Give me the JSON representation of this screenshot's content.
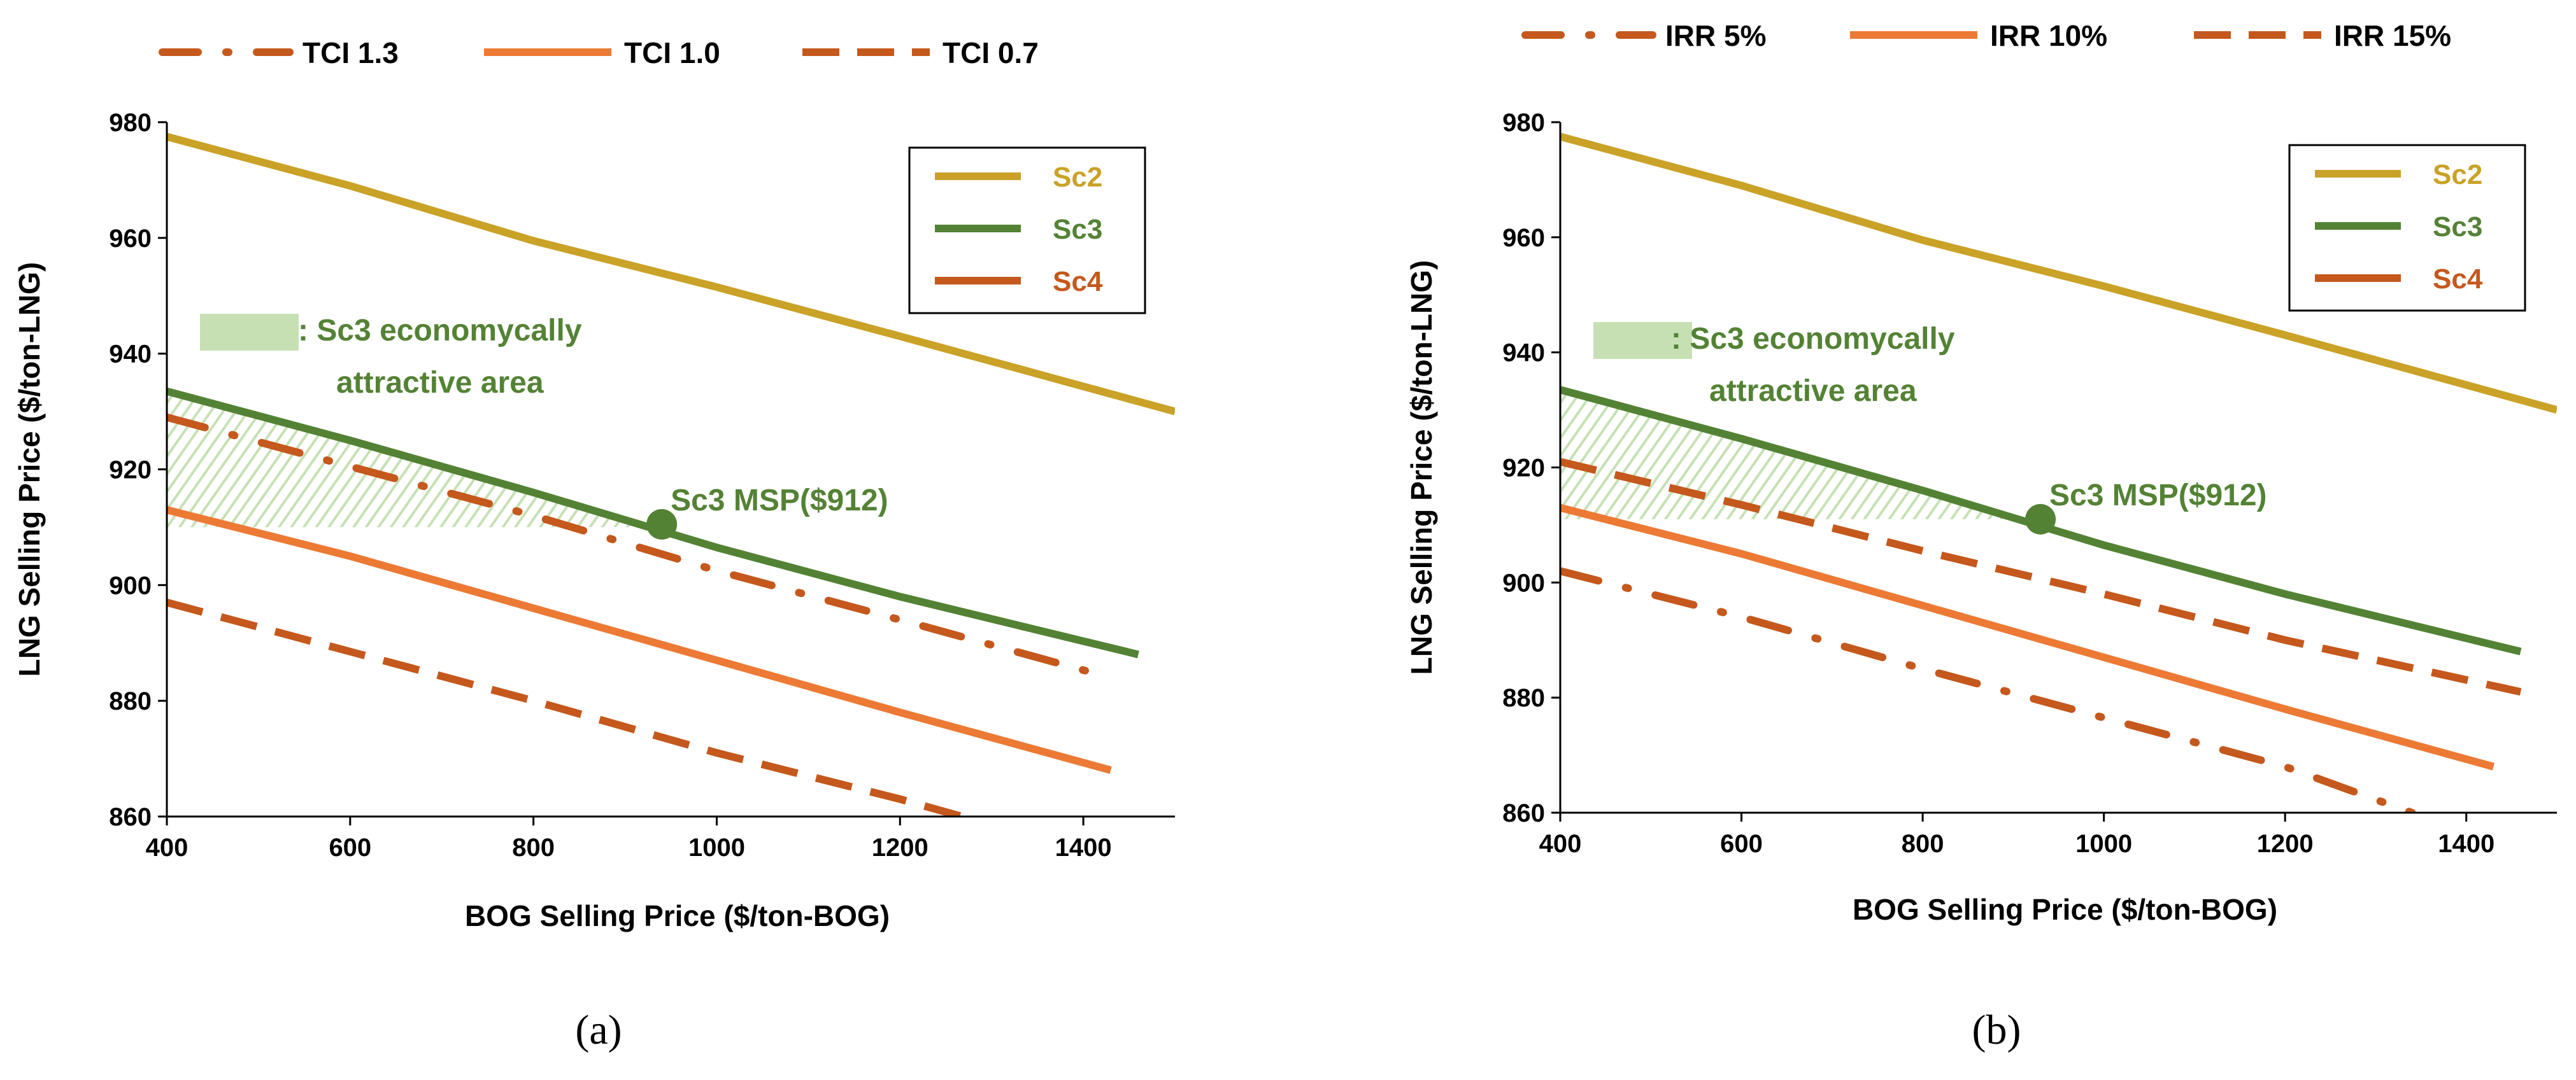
{
  "colors": {
    "sc2": "#C9A227",
    "sc3": "#548235",
    "sc4": "#EC7A35",
    "dark_orange": "#C5581C",
    "area_fill": "#C6E0B4",
    "msp_text": "#548235"
  },
  "chart_data": [
    {
      "type": "line",
      "panel_label": "(a)",
      "xlabel": "BOG Selling Price ($/ton-BOG)",
      "ylabel": "LNG Selling Price ($/ton-LNG)",
      "xlim": [
        400,
        1500
      ],
      "ylim": [
        860,
        980
      ],
      "x_ticks": [
        "400",
        "600",
        "800",
        "1000",
        "1200",
        "1400"
      ],
      "y_ticks": [
        "860",
        "880",
        "900",
        "920",
        "940",
        "960",
        "980"
      ],
      "top_legend": [
        {
          "label": "TCI 1.3",
          "style": "dashdot"
        },
        {
          "label": "TCI 1.0",
          "style": "solid"
        },
        {
          "label": "TCI 0.7",
          "style": "dashed"
        }
      ],
      "box_legend": [
        {
          "label": "Sc2"
        },
        {
          "label": "Sc3"
        },
        {
          "label": "Sc4"
        }
      ],
      "area_label_line1": ": Sc3 economycally",
      "area_label_line2": "attractive area",
      "msp_label": "Sc3 MSP($912)",
      "msp_point": {
        "x": 940,
        "y": 910.5
      },
      "area_bottom_y": 910,
      "series": [
        {
          "name": "Sc2",
          "style": "solid",
          "color": "sc2",
          "x": [
            400,
            600,
            800,
            1000,
            1200,
            1500
          ],
          "y": [
            977.5,
            969,
            959.5,
            951.5,
            943,
            930
          ]
        },
        {
          "name": "Sc3",
          "style": "solid",
          "color": "sc3",
          "x": [
            400,
            600,
            800,
            1000,
            1200,
            1460
          ],
          "y": [
            933.5,
            925,
            916,
            906.5,
            898,
            888
          ]
        },
        {
          "name": "Sc4 TCI 1.0",
          "style": "solid",
          "color": "sc4",
          "x": [
            400,
            600,
            800,
            1000,
            1200,
            1430
          ],
          "y": [
            913,
            905,
            896,
            887,
            878,
            868
          ]
        },
        {
          "name": "Sc4 TCI 1.3",
          "style": "dashdot",
          "color": "dark_orange",
          "x": [
            400,
            600,
            800,
            1000,
            1200,
            1430
          ],
          "y": [
            929,
            920.5,
            912,
            902.5,
            894,
            884
          ]
        },
        {
          "name": "Sc4 TCI 0.7",
          "style": "dashed",
          "color": "dark_orange",
          "x": [
            400,
            600,
            800,
            1000,
            1200,
            1290
          ],
          "y": [
            897,
            888.5,
            880,
            871,
            863,
            859
          ]
        }
      ]
    },
    {
      "type": "line",
      "panel_label": "(b)",
      "xlabel": "BOG Selling Price ($/ton-BOG)",
      "ylabel": "LNG Selling Price ($/ton-LNG)",
      "xlim": [
        400,
        1500
      ],
      "ylim": [
        860,
        980
      ],
      "x_ticks": [
        "400",
        "600",
        "800",
        "1000",
        "1200",
        "1400"
      ],
      "y_ticks": [
        "860",
        "880",
        "900",
        "920",
        "940",
        "960",
        "980"
      ],
      "top_legend": [
        {
          "label": "IRR 5%",
          "style": "dashdot"
        },
        {
          "label": "IRR 10%",
          "style": "solid"
        },
        {
          "label": "IRR 15%",
          "style": "dashed"
        }
      ],
      "box_legend": [
        {
          "label": "Sc2"
        },
        {
          "label": "Sc3"
        },
        {
          "label": "Sc4"
        }
      ],
      "area_label_line1": ": Sc3 economycally",
      "area_label_line2": "attractive area",
      "msp_label": "Sc3 MSP($912)",
      "msp_point": {
        "x": 930,
        "y": 911
      },
      "area_bottom_y": 911,
      "series": [
        {
          "name": "Sc2",
          "style": "solid",
          "color": "sc2",
          "x": [
            400,
            600,
            800,
            1000,
            1200,
            1500
          ],
          "y": [
            977.5,
            969,
            959.5,
            951.5,
            943,
            930
          ]
        },
        {
          "name": "Sc3",
          "style": "solid",
          "color": "sc3",
          "x": [
            400,
            600,
            800,
            1000,
            1200,
            1460
          ],
          "y": [
            933.5,
            925,
            916,
            906.5,
            898,
            888
          ]
        },
        {
          "name": "Sc4 IRR 10%",
          "style": "solid",
          "color": "sc4",
          "x": [
            400,
            600,
            800,
            1000,
            1200,
            1430
          ],
          "y": [
            913,
            905,
            896,
            887,
            878,
            868
          ]
        },
        {
          "name": "Sc4 IRR 15%",
          "style": "dashed",
          "color": "dark_orange",
          "x": [
            400,
            600,
            800,
            1000,
            1200,
            1460
          ],
          "y": [
            921,
            913.5,
            905.5,
            898,
            890,
            881
          ]
        },
        {
          "name": "Sc4 IRR 5%",
          "style": "dashdot",
          "color": "dark_orange",
          "x": [
            400,
            600,
            800,
            1000,
            1200,
            1340
          ],
          "y": [
            902,
            894,
            885,
            876.5,
            868,
            860
          ]
        }
      ]
    }
  ]
}
